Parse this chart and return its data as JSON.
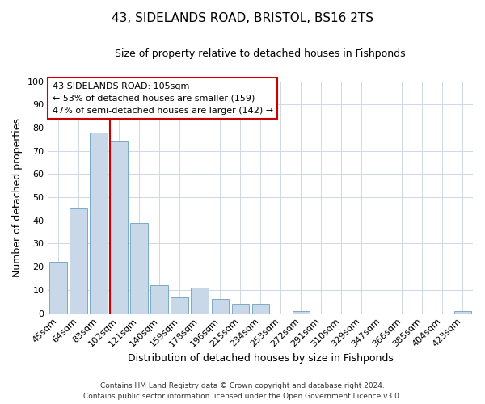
{
  "title": "43, SIDELANDS ROAD, BRISTOL, BS16 2TS",
  "subtitle": "Size of property relative to detached houses in Fishponds",
  "xlabel": "Distribution of detached houses by size in Fishponds",
  "ylabel": "Number of detached properties",
  "bar_labels": [
    "45sqm",
    "64sqm",
    "83sqm",
    "102sqm",
    "121sqm",
    "140sqm",
    "159sqm",
    "178sqm",
    "196sqm",
    "215sqm",
    "234sqm",
    "253sqm",
    "272sqm",
    "291sqm",
    "310sqm",
    "329sqm",
    "347sqm",
    "366sqm",
    "385sqm",
    "404sqm",
    "423sqm"
  ],
  "bar_heights": [
    22,
    45,
    78,
    74,
    39,
    12,
    7,
    11,
    6,
    4,
    4,
    0,
    1,
    0,
    0,
    0,
    0,
    0,
    0,
    0,
    1
  ],
  "bar_color": "#c8d8e8",
  "bar_edgecolor": "#7aaac8",
  "vline_color": "#cc0000",
  "vline_x_index": 3,
  "annotation_line1": "43 SIDELANDS ROAD: 105sqm",
  "annotation_line2": "← 53% of detached houses are smaller (159)",
  "annotation_line3": "47% of semi-detached houses are larger (142) →",
  "ann_box_edgecolor": "#cc0000",
  "ylim": [
    0,
    100
  ],
  "footer_line1": "Contains HM Land Registry data © Crown copyright and database right 2024.",
  "footer_line2": "Contains public sector information licensed under the Open Government Licence v3.0.",
  "background_color": "#ffffff",
  "grid_color": "#ccd8e4"
}
